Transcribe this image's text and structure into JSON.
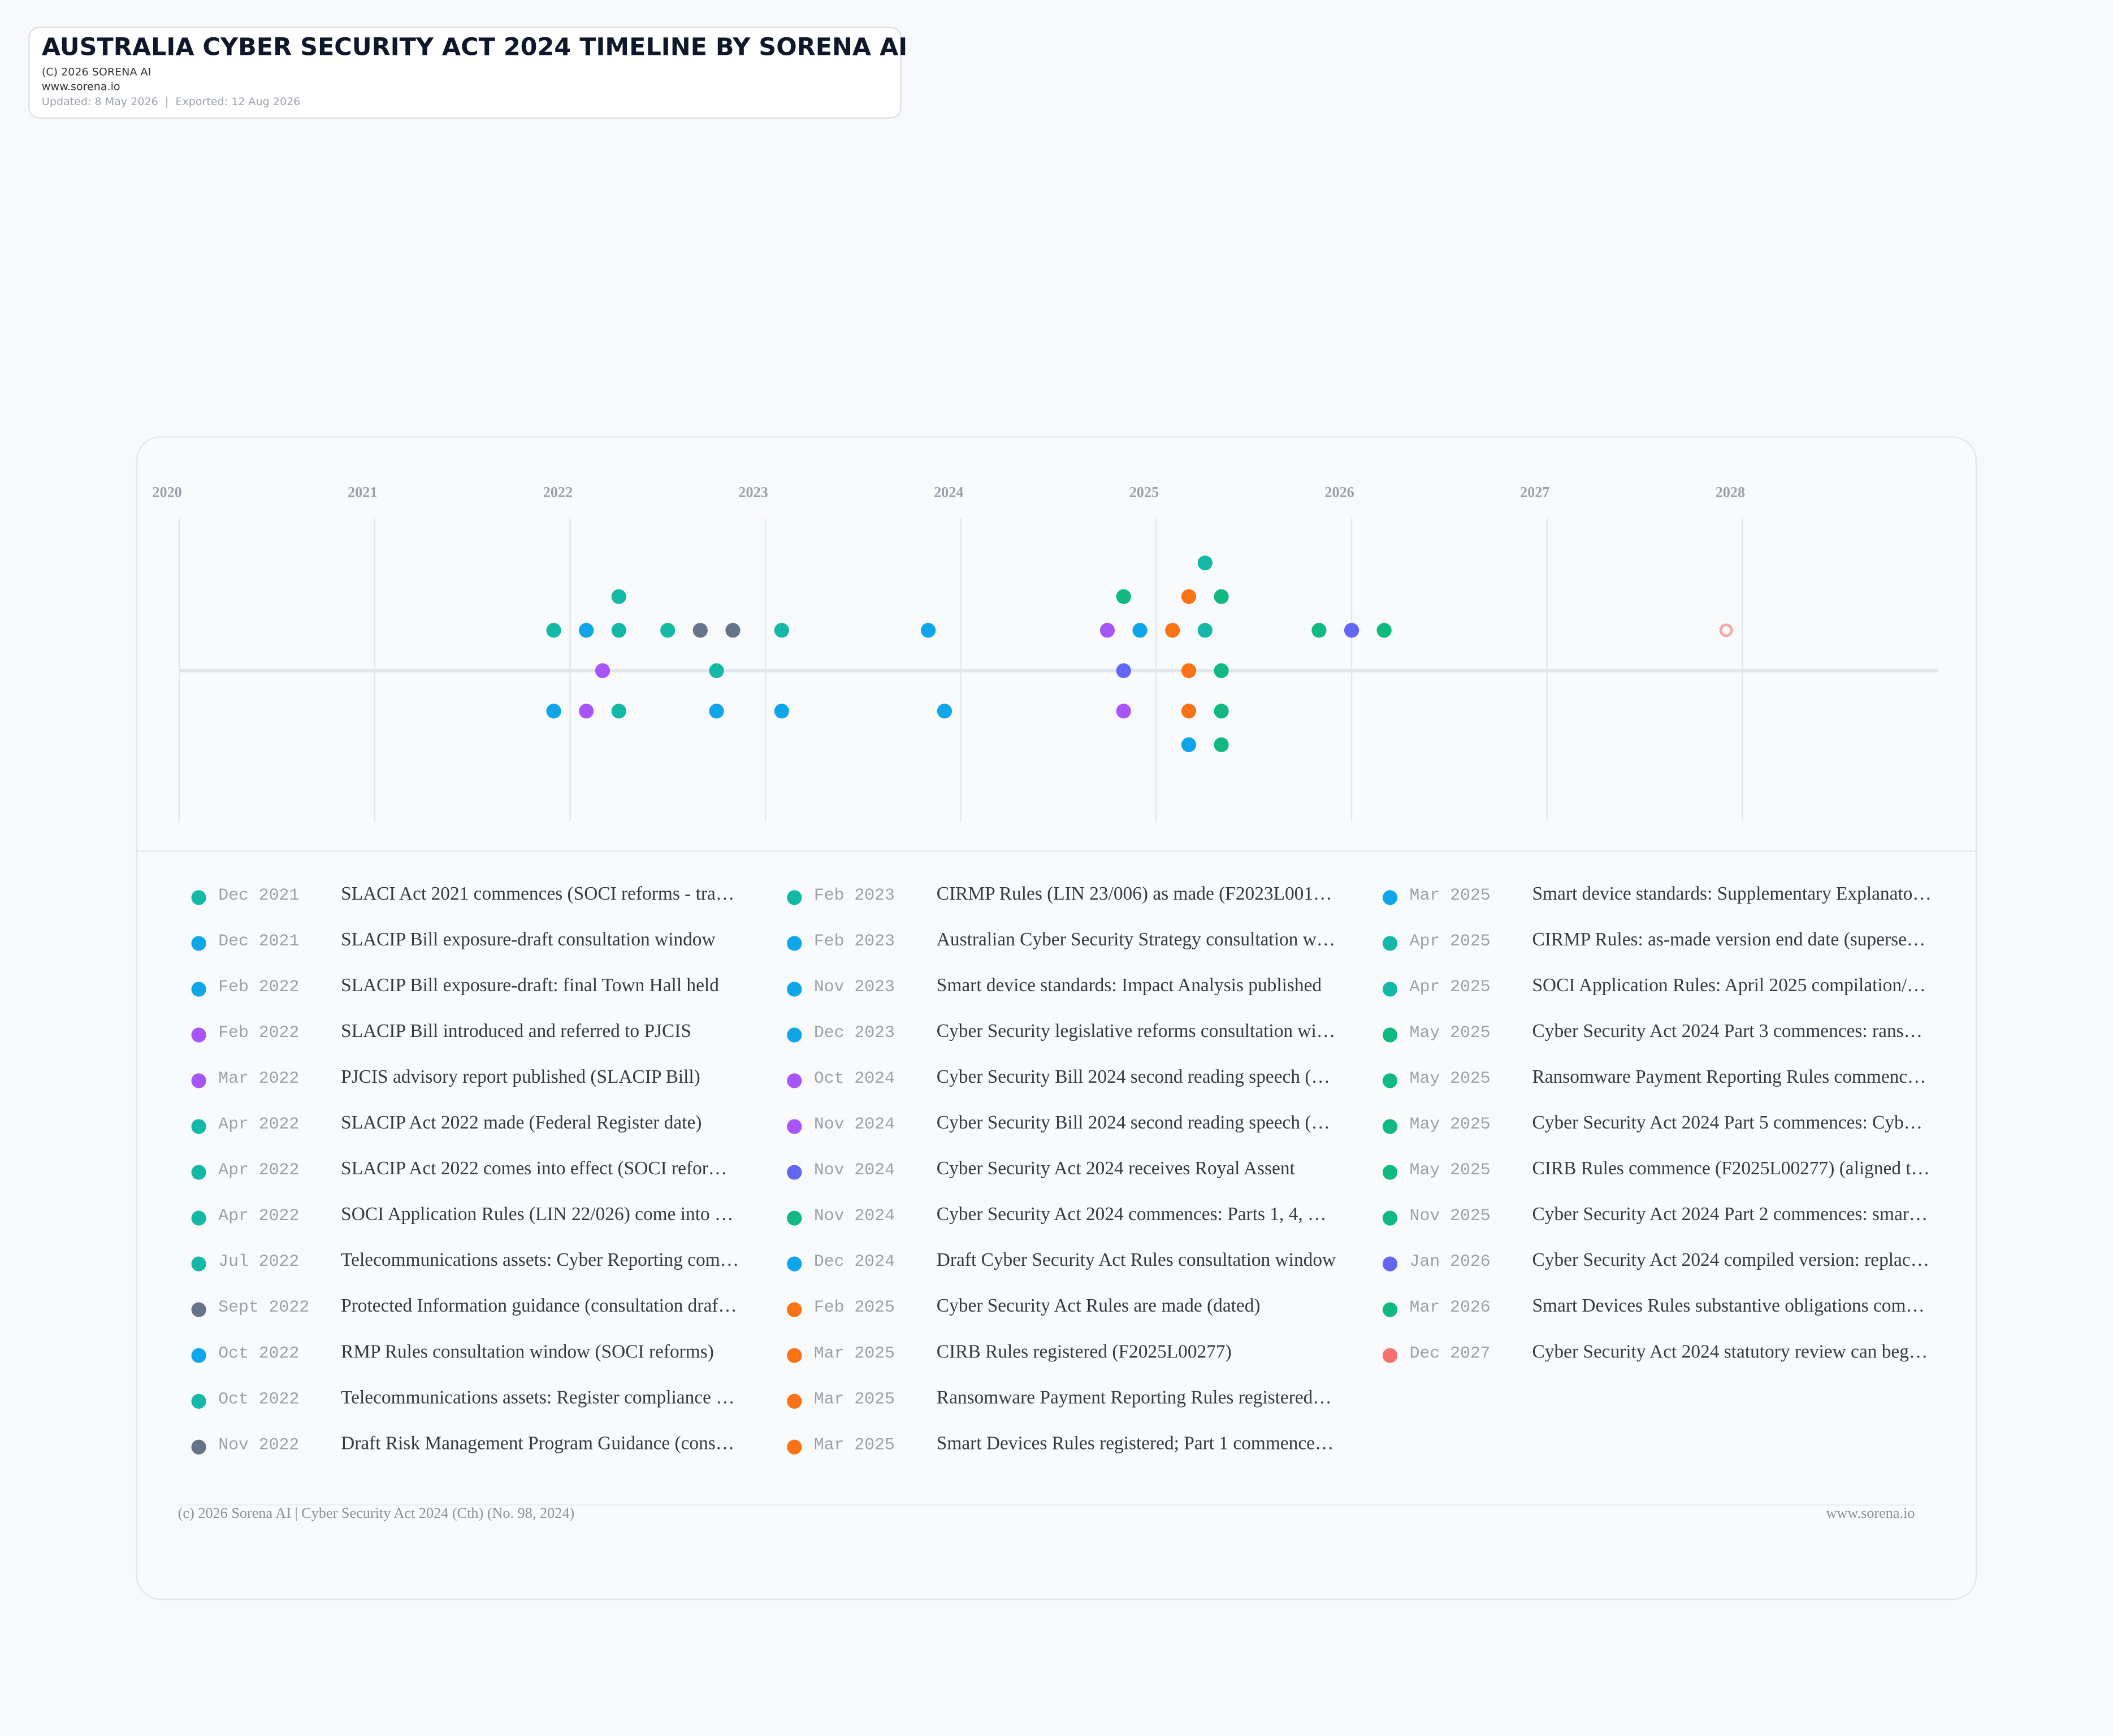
{
  "header": {
    "title": "AUSTRALIA CYBER SECURITY ACT 2024 TIMELINE BY SORENA AI",
    "copyright": "(C) 2026 SORENA AI",
    "website": "www.sorena.io",
    "dates": "Updated: 8 May 2026  |  Exported: 12 Aug 2026"
  },
  "years": [
    "2020",
    "2021",
    "2022",
    "2023",
    "2024",
    "2025",
    "2026",
    "2027",
    "2028"
  ],
  "events": [
    {
      "date": "Dec 2021",
      "text": "SLACI Act 2021 commences (SOCI reforms - tra…",
      "color": "#14b8a6"
    },
    {
      "date": "Dec 2021",
      "text": "SLACIP Bill exposure-draft consultation window",
      "color": "#0ea5e9"
    },
    {
      "date": "Feb 2022",
      "text": "SLACIP Bill exposure-draft: final Town Hall held",
      "color": "#0ea5e9"
    },
    {
      "date": "Feb 2022",
      "text": "SLACIP Bill introduced and referred to PJCIS",
      "color": "#a855f7"
    },
    {
      "date": "Mar 2022",
      "text": "PJCIS advisory report published (SLACIP Bill)",
      "color": "#a855f7"
    },
    {
      "date": "Apr 2022",
      "text": "SLACIP Act 2022 made (Federal Register date)",
      "color": "#14b8a6"
    },
    {
      "date": "Apr 2022",
      "text": "SLACIP Act 2022 comes into effect (SOCI refor…",
      "color": "#14b8a6"
    },
    {
      "date": "Apr 2022",
      "text": "SOCI Application Rules (LIN 22/026) come into …",
      "color": "#14b8a6"
    },
    {
      "date": "Jul 2022",
      "text": "Telecommunications assets: Cyber Reporting com…",
      "color": "#14b8a6"
    },
    {
      "date": "Sept 2022",
      "text": "Protected Information guidance (consultation draf…",
      "color": "#64748b"
    },
    {
      "date": "Oct 2022",
      "text": "RMP Rules consultation window (SOCI reforms)",
      "color": "#0ea5e9"
    },
    {
      "date": "Oct 2022",
      "text": "Telecommunications assets: Register compliance …",
      "color": "#14b8a6"
    },
    {
      "date": "Nov 2022",
      "text": "Draft Risk Management Program Guidance (cons…",
      "color": "#64748b"
    },
    {
      "date": "Feb 2023",
      "text": "CIRMP Rules (LIN 23/006) as made (F2023L001…",
      "color": "#14b8a6"
    },
    {
      "date": "Feb 2023",
      "text": "Australian Cyber Security Strategy consultation w…",
      "color": "#0ea5e9"
    },
    {
      "date": "Nov 2023",
      "text": "Smart device standards: Impact Analysis published",
      "color": "#0ea5e9"
    },
    {
      "date": "Dec 2023",
      "text": "Cyber Security legislative reforms consultation wi…",
      "color": "#0ea5e9"
    },
    {
      "date": "Oct 2024",
      "text": "Cyber Security Bill 2024 second reading speech (…",
      "color": "#a855f7"
    },
    {
      "date": "Nov 2024",
      "text": "Cyber Security Bill 2024 second reading speech (…",
      "color": "#a855f7"
    },
    {
      "date": "Nov 2024",
      "text": "Cyber Security Act 2024 receives Royal Assent",
      "color": "#6366f1"
    },
    {
      "date": "Nov 2024",
      "text": "Cyber Security Act 2024 commences: Parts 1, 4, …",
      "color": "#10b981"
    },
    {
      "date": "Dec 2024",
      "text": "Draft Cyber Security Act Rules consultation window",
      "color": "#0ea5e9"
    },
    {
      "date": "Feb 2025",
      "text": "Cyber Security Act Rules are made (dated)",
      "color": "#f97316"
    },
    {
      "date": "Mar 2025",
      "text": "CIRB Rules registered (F2025L00277)",
      "color": "#f97316"
    },
    {
      "date": "Mar 2025",
      "text": "Ransomware Payment Reporting Rules registered…",
      "color": "#f97316"
    },
    {
      "date": "Mar 2025",
      "text": "Smart Devices Rules registered; Part 1 commence…",
      "color": "#f97316"
    },
    {
      "date": "Mar 2025",
      "text": "Smart device standards: Supplementary Explanato…",
      "color": "#0ea5e9"
    },
    {
      "date": "Apr 2025",
      "text": "CIRMP Rules: as-made version end date (superse…",
      "color": "#14b8a6"
    },
    {
      "date": "Apr 2025",
      "text": "SOCI Application Rules: April 2025 compilation/…",
      "color": "#14b8a6"
    },
    {
      "date": "May 2025",
      "text": "Cyber Security Act 2024 Part 3 commences: rans…",
      "color": "#10b981"
    },
    {
      "date": "May 2025",
      "text": "Ransomware Payment Reporting Rules commenc…",
      "color": "#10b981"
    },
    {
      "date": "May 2025",
      "text": "Cyber Security Act 2024 Part 5 commences: Cyb…",
      "color": "#10b981"
    },
    {
      "date": "May 2025",
      "text": "CIRB Rules commence (F2025L00277) (aligned t…",
      "color": "#10b981"
    },
    {
      "date": "Nov 2025",
      "text": "Cyber Security Act 2024 Part 2 commences: smar…",
      "color": "#10b981"
    },
    {
      "date": "Jan 2026",
      "text": "Cyber Security Act 2024 compiled version: replac…",
      "color": "#6366f1"
    },
    {
      "date": "Mar 2026",
      "text": "Smart Devices Rules substantive obligations com…",
      "color": "#10b981"
    },
    {
      "date": "Dec 2027",
      "text": "Cyber Security Act 2024 statutory review can beg…",
      "color": "#f87171"
    }
  ],
  "footer": {
    "left": "(c) 2026 Sorena AI | Cyber Security Act 2024 (Cth) (No. 98, 2024)",
    "right": "www.sorena.io"
  }
}
